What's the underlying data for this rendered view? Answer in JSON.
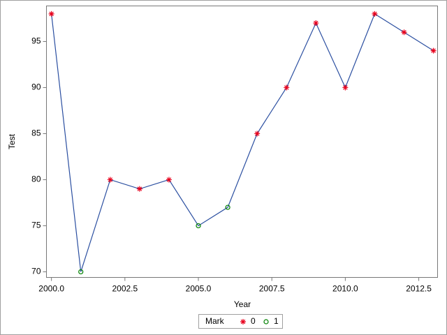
{
  "chart_data": {
    "type": "line",
    "x_label": "Year",
    "y_label": "Test",
    "x": [
      2000,
      2001,
      2002,
      2003,
      2004,
      2005,
      2006,
      2007,
      2008,
      2009,
      2010,
      2011,
      2012,
      2013
    ],
    "values": [
      98,
      70,
      80,
      79,
      80,
      75,
      77,
      85,
      90,
      97,
      90,
      98,
      96,
      94
    ],
    "group": [
      0,
      1,
      0,
      0,
      0,
      1,
      1,
      0,
      0,
      0,
      0,
      0,
      0,
      0
    ],
    "line_color": "#2a4ea0",
    "legend": {
      "title": "Mark",
      "entries": [
        {
          "name": "0",
          "color": "#e8001c",
          "marker": "star"
        },
        {
          "name": "1",
          "color": "#008000",
          "marker": "circle"
        }
      ]
    },
    "xlim": [
      1999.83,
      2013.14
    ],
    "ylim": [
      69.39,
      98.86
    ],
    "xticks": [
      {
        "value": 2000,
        "label": "2000.0"
      },
      {
        "value": 2002.5,
        "label": "2002.5"
      },
      {
        "value": 2005,
        "label": "2005.0"
      },
      {
        "value": 2007.5,
        "label": "2007.5"
      },
      {
        "value": 2010,
        "label": "2010.0"
      },
      {
        "value": 2012.5,
        "label": "2012.5"
      }
    ],
    "yticks": [
      70,
      75,
      80,
      85,
      90,
      95
    ]
  }
}
